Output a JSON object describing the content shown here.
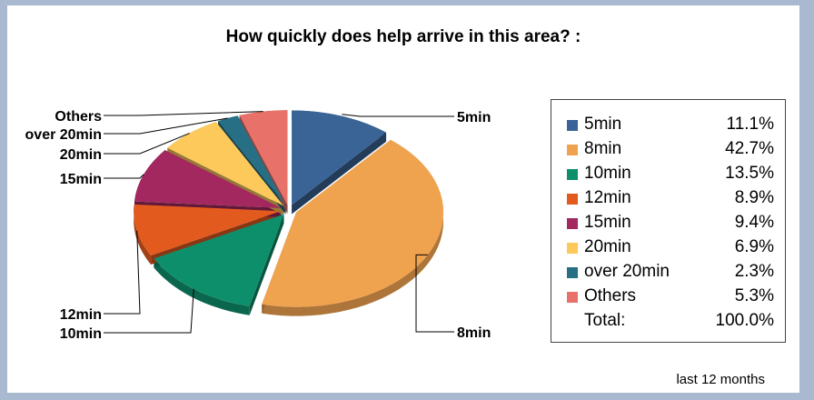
{
  "chart_data": {
    "type": "pie",
    "title": "How quickly does help arrive in this area? :",
    "categories": [
      "5min",
      "8min",
      "10min",
      "12min",
      "15min",
      "20min",
      "over 20min",
      "Others"
    ],
    "values": [
      11.1,
      42.7,
      13.5,
      8.9,
      9.4,
      6.9,
      2.3,
      5.3
    ],
    "value_labels": [
      "11.1%",
      "42.7%",
      "13.5%",
      "8.9%",
      "9.4%",
      "6.9%",
      "2.3%",
      "5.3%"
    ],
    "colors": [
      "#3a6496",
      "#f0a34f",
      "#0e8f6b",
      "#e35a1f",
      "#a2285f",
      "#fcc95a",
      "#266f85",
      "#e8726a"
    ],
    "total_label": "Total:",
    "total_value": "100.0%",
    "legend_position": "right",
    "exploded": true,
    "style": "3d"
  },
  "footnote": "last 12 months"
}
